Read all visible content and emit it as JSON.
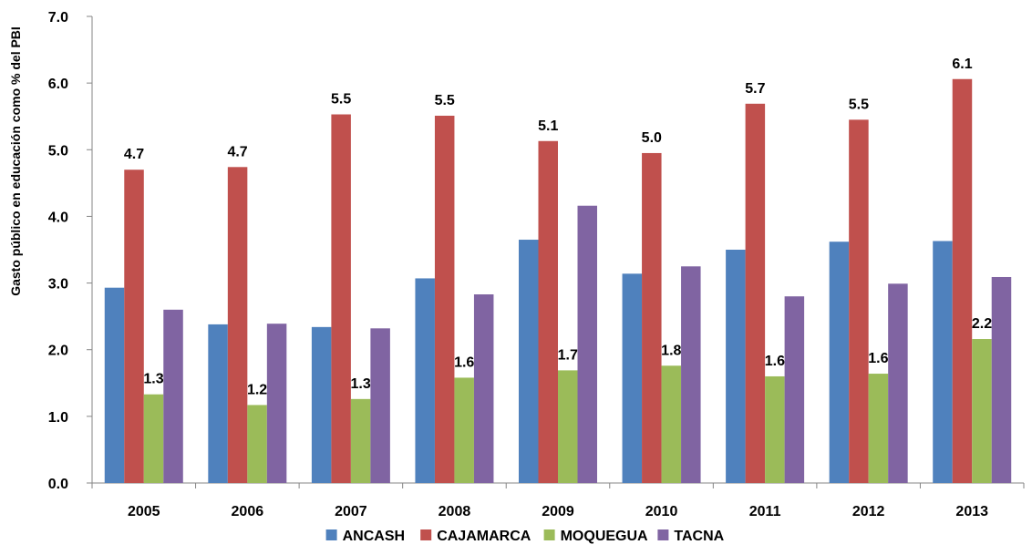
{
  "chart_data": {
    "type": "bar",
    "title": "",
    "xlabel": "",
    "ylabel": "Gasto público en educación como % del PBI",
    "ylim": [
      0,
      7
    ],
    "yticks": [
      "0.0",
      "1.0",
      "2.0",
      "3.0",
      "4.0",
      "5.0",
      "6.0",
      "7.0"
    ],
    "grid": false,
    "legend_position": "bottom",
    "categories": [
      "2005",
      "2006",
      "2007",
      "2008",
      "2009",
      "2010",
      "2011",
      "2012",
      "2013"
    ],
    "series": [
      {
        "name": "ANCASH",
        "color": "#4F81BD",
        "show_labels": false,
        "values": [
          2.93,
          2.38,
          2.34,
          3.07,
          3.65,
          3.14,
          3.5,
          3.62,
          3.63
        ]
      },
      {
        "name": "CAJAMARCA",
        "color": "#C0504D",
        "show_labels": true,
        "values": [
          4.7,
          4.74,
          5.53,
          5.51,
          5.13,
          4.95,
          5.69,
          5.45,
          6.06
        ],
        "labels": [
          "4.7",
          "4.7",
          "5.5",
          "5.5",
          "5.1",
          "5.0",
          "5.7",
          "5.5",
          "6.1"
        ]
      },
      {
        "name": "MOQUEGUA",
        "color": "#9BBB59",
        "show_labels": true,
        "values": [
          1.33,
          1.17,
          1.26,
          1.58,
          1.69,
          1.76,
          1.6,
          1.64,
          2.16
        ],
        "labels": [
          "1.3",
          "1.2",
          "1.3",
          "1.6",
          "1.7",
          "1.8",
          "1.6",
          "1.6",
          "2.2"
        ]
      },
      {
        "name": "TACNA",
        "color": "#8064A2",
        "show_labels": false,
        "values": [
          2.6,
          2.39,
          2.32,
          2.83,
          4.16,
          3.25,
          2.8,
          2.99,
          3.09
        ]
      }
    ]
  }
}
